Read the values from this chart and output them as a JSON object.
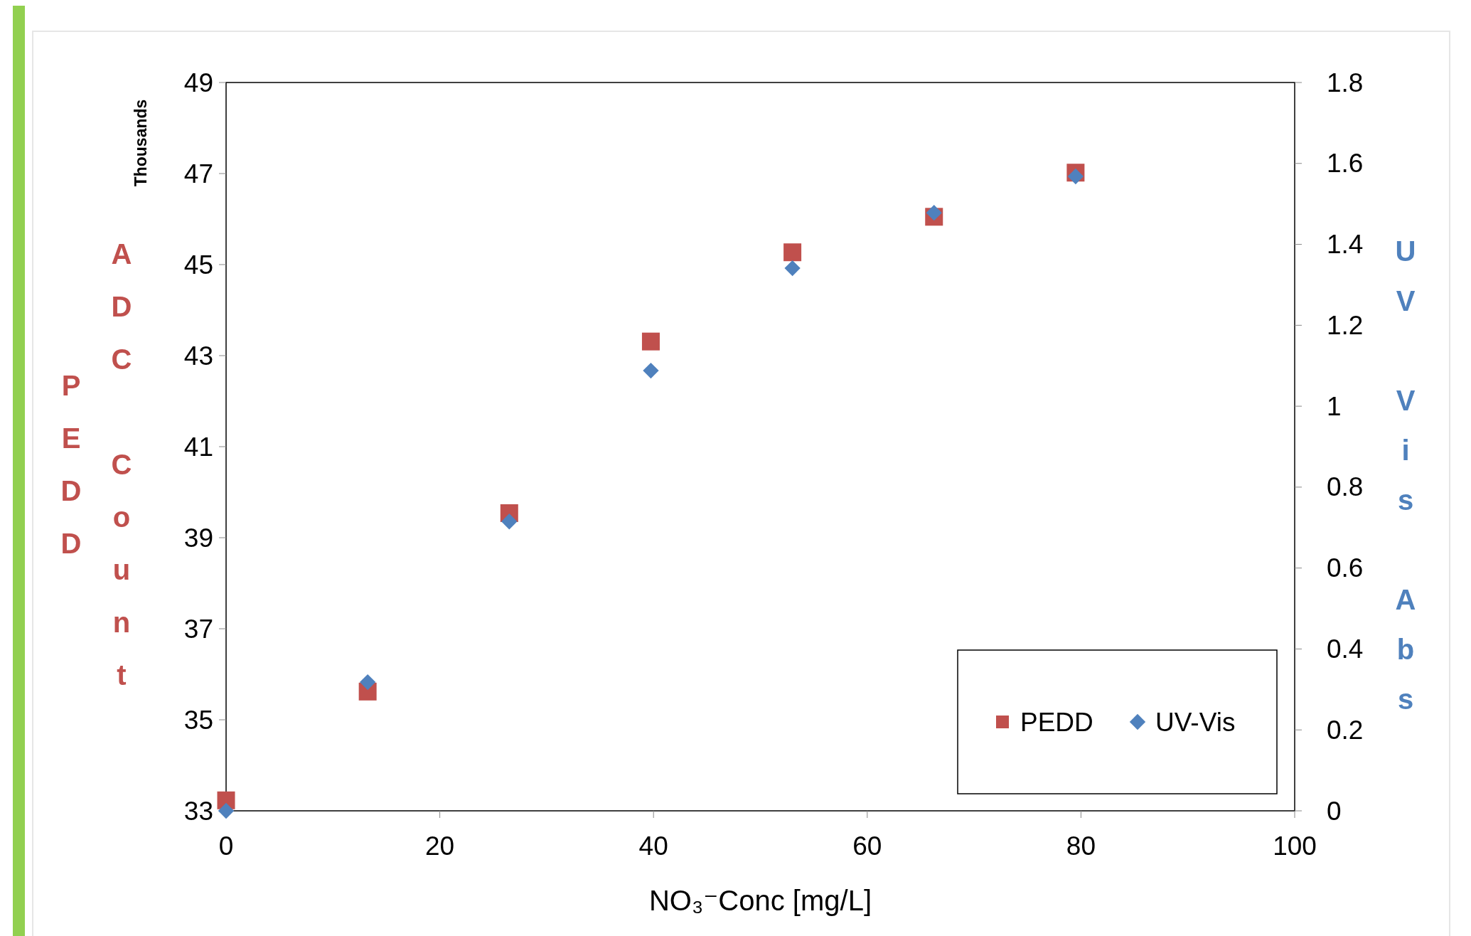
{
  "chart_data": {
    "type": "scatter",
    "xlabel": "NO₃⁻Conc [mg/L]",
    "ylabel": "PEDD ADC Count",
    "y2label": "UV Vis Abs",
    "annotations": [
      "Thousands"
    ],
    "x": [
      0,
      13.25,
      26.5,
      39.75,
      53,
      66.25,
      79.5
    ],
    "series": [
      {
        "name": "PEDD",
        "color": "#c0504d",
        "marker": "square",
        "values": [
          33.23,
          35.62,
          39.54,
          43.31,
          45.27,
          46.05,
          47.02
        ]
      },
      {
        "name": "UV-Vis",
        "color": "#4f81bd",
        "marker": "diamond",
        "axis": "y2",
        "values": [
          0,
          0.318,
          0.715,
          1.088,
          1.341,
          1.478,
          1.568
        ]
      }
    ],
    "xlim": [
      0,
      100
    ],
    "xticks": [
      0,
      20,
      40,
      60,
      80,
      100
    ],
    "ylim": [
      33,
      49
    ],
    "yticks": [
      33,
      35,
      37,
      39,
      41,
      43,
      45,
      47,
      49
    ],
    "y2lim": [
      0,
      1.8
    ],
    "y2ticks": [
      0,
      0.2,
      0.4,
      0.6,
      0.8,
      1,
      1.2,
      1.4,
      1.6,
      1.8
    ],
    "legend": "bottom right",
    "grid": false
  }
}
